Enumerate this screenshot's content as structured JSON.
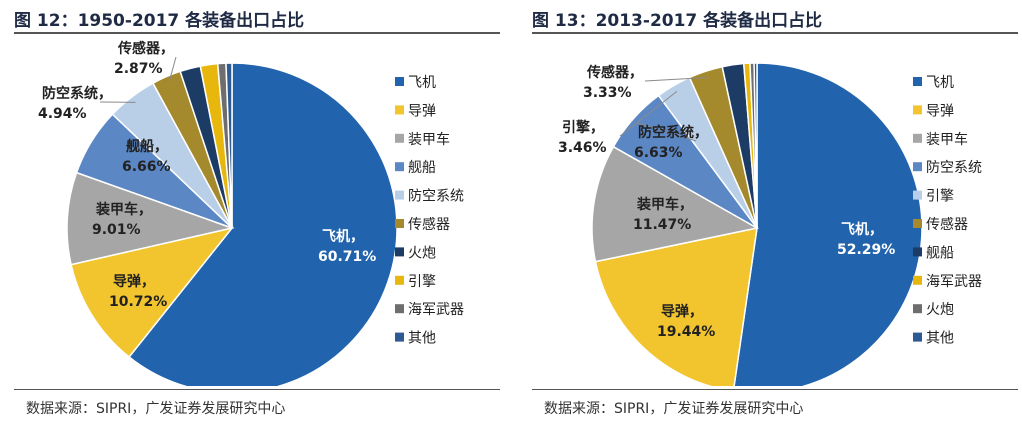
{
  "chart_data": [
    {
      "type": "pie",
      "title": "图 12：1950-2017 各装备出口占比",
      "source": "数据来源：SIPRI，广发证券发展研究中心",
      "slices": [
        {
          "label": "飞机",
          "value": 60.71,
          "value_label": "60.71%",
          "color": "#2163ad"
        },
        {
          "label": "导弹",
          "value": 10.72,
          "value_label": "10.72%",
          "color": "#f2c42e"
        },
        {
          "label": "装甲车",
          "value": 9.01,
          "value_label": "9.01%",
          "color": "#a6a6a6"
        },
        {
          "label": "舰船",
          "value": 6.66,
          "value_label": "6.66%",
          "color": "#5b87c5"
        },
        {
          "label": "防空系统",
          "value": 4.94,
          "value_label": "4.94%",
          "color": "#b9cfe8"
        },
        {
          "label": "传感器",
          "value": 2.87,
          "value_label": "2.87%",
          "color": "#a48a2c"
        },
        {
          "label": "火炮",
          "value": 2.0,
          "value_label": "",
          "color": "#1c3c66"
        },
        {
          "label": "引擎",
          "value": 1.7,
          "value_label": "",
          "color": "#e7b70d"
        },
        {
          "label": "海军武器",
          "value": 0.8,
          "value_label": "",
          "color": "#6e6e6e"
        },
        {
          "label": "其他",
          "value": 0.58,
          "value_label": "",
          "color": "#2d5a94"
        }
      ],
      "legend": [
        "飞机",
        "导弹",
        "装甲车",
        "舰船",
        "防空系统",
        "传感器",
        "火炮",
        "引擎",
        "海军武器",
        "其他"
      ]
    },
    {
      "type": "pie",
      "title": "图 13：2013-2017 各装备出口占比",
      "source": "数据来源：SIPRI，广发证券发展研究中心",
      "slices": [
        {
          "label": "飞机",
          "value": 52.29,
          "value_label": "52.29%",
          "color": "#2163ad"
        },
        {
          "label": "导弹",
          "value": 19.44,
          "value_label": "19.44%",
          "color": "#f2c42e"
        },
        {
          "label": "装甲车",
          "value": 11.47,
          "value_label": "11.47%",
          "color": "#a6a6a6"
        },
        {
          "label": "防空系统",
          "value": 6.63,
          "value_label": "6.63%",
          "color": "#5b87c5"
        },
        {
          "label": "引擎",
          "value": 3.46,
          "value_label": "3.46%",
          "color": "#b9cfe8"
        },
        {
          "label": "传感器",
          "value": 3.33,
          "value_label": "3.33%",
          "color": "#a48a2c"
        },
        {
          "label": "舰船",
          "value": 2.1,
          "value_label": "",
          "color": "#1c3c66"
        },
        {
          "label": "海军武器",
          "value": 0.6,
          "value_label": "",
          "color": "#e7b70d"
        },
        {
          "label": "火炮",
          "value": 0.4,
          "value_label": "",
          "color": "#6e6e6e"
        },
        {
          "label": "其他",
          "value": 0.28,
          "value_label": "",
          "color": "#2d5a94"
        }
      ],
      "legend": [
        "飞机",
        "导弹",
        "装甲车",
        "防空系统",
        "引擎",
        "传感器",
        "舰船",
        "海军武器",
        "火炮",
        "其他"
      ]
    }
  ]
}
